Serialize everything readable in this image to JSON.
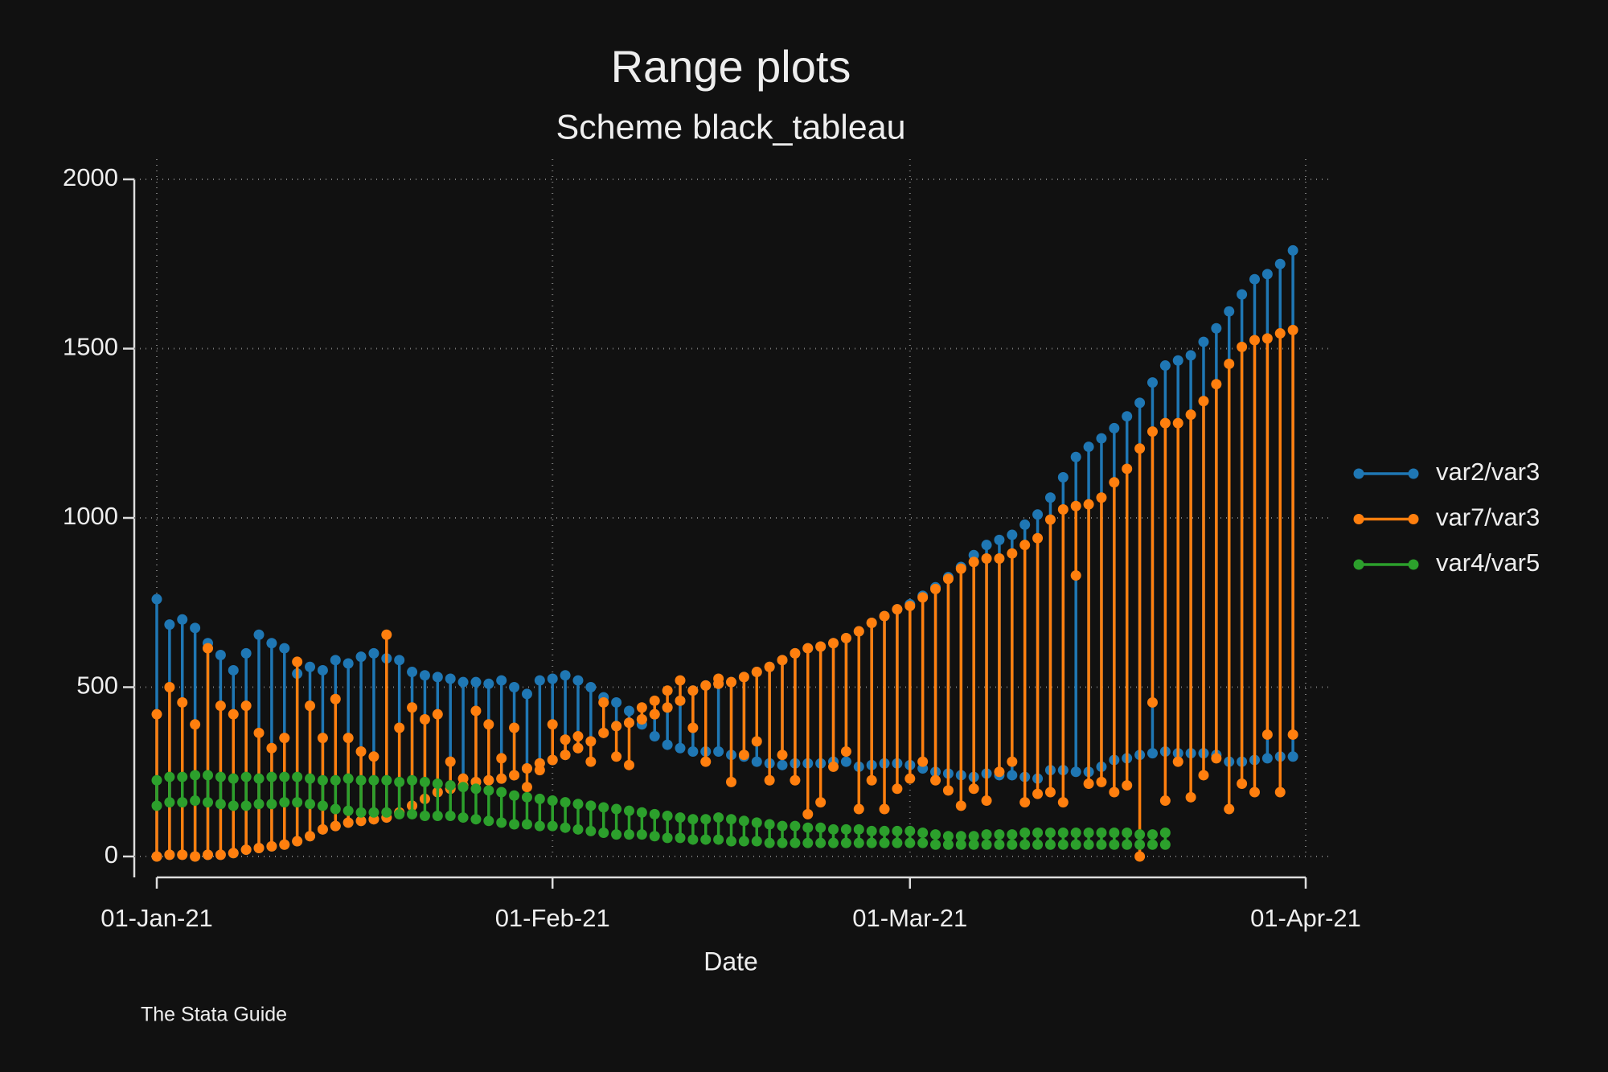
{
  "chart_data": {
    "type": "rrange",
    "title": "Range plots",
    "subtitle": "Scheme black_tableau",
    "x_label": "Date",
    "note": "The Stata Guide",
    "x": [
      "2021-01-01",
      "2021-01-02",
      "2021-01-03",
      "2021-01-04",
      "2021-01-05",
      "2021-01-06",
      "2021-01-07",
      "2021-01-08",
      "2021-01-09",
      "2021-01-10",
      "2021-01-11",
      "2021-01-12",
      "2021-01-13",
      "2021-01-14",
      "2021-01-15",
      "2021-01-16",
      "2021-01-17",
      "2021-01-18",
      "2021-01-19",
      "2021-01-20",
      "2021-01-21",
      "2021-01-22",
      "2021-01-23",
      "2021-01-24",
      "2021-01-25",
      "2021-01-26",
      "2021-01-27",
      "2021-01-28",
      "2021-01-29",
      "2021-01-30",
      "2021-01-31",
      "2021-02-01",
      "2021-02-02",
      "2021-02-03",
      "2021-02-04",
      "2021-02-05",
      "2021-02-06",
      "2021-02-07",
      "2021-02-08",
      "2021-02-09",
      "2021-02-10",
      "2021-02-11",
      "2021-02-12",
      "2021-02-13",
      "2021-02-14",
      "2021-02-15",
      "2021-02-16",
      "2021-02-17",
      "2021-02-18",
      "2021-02-19",
      "2021-02-20",
      "2021-02-21",
      "2021-02-22",
      "2021-02-23",
      "2021-02-24",
      "2021-02-25",
      "2021-02-26",
      "2021-02-27",
      "2021-02-28",
      "2021-03-01",
      "2021-03-02",
      "2021-03-03",
      "2021-03-04",
      "2021-03-05",
      "2021-03-06",
      "2021-03-07",
      "2021-03-08",
      "2021-03-09",
      "2021-03-10",
      "2021-03-11",
      "2021-03-12",
      "2021-03-13",
      "2021-03-14",
      "2021-03-15",
      "2021-03-16",
      "2021-03-17",
      "2021-03-18",
      "2021-03-19",
      "2021-03-20",
      "2021-03-21",
      "2021-03-22",
      "2021-03-23",
      "2021-03-24",
      "2021-03-25",
      "2021-03-26",
      "2021-03-27",
      "2021-03-28",
      "2021-03-29",
      "2021-03-30",
      "2021-03-31"
    ],
    "series": [
      {
        "name": "var2/var3",
        "color": "#1f77b4",
        "y1": [
          760,
          685,
          700,
          675,
          630,
          595,
          550,
          600,
          655,
          630,
          615,
          540,
          560,
          550,
          580,
          570,
          590,
          600,
          585,
          580,
          545,
          535,
          530,
          525,
          515,
          515,
          510,
          520,
          500,
          480,
          520,
          525,
          535,
          520,
          500,
          470,
          455,
          430,
          390,
          355,
          330,
          320,
          310,
          310,
          310,
          300,
          295,
          280,
          275,
          270,
          275,
          275,
          275,
          280,
          280,
          265,
          270,
          275,
          275,
          270,
          260,
          250,
          245,
          240,
          235,
          245,
          240,
          240,
          235,
          230,
          255,
          255,
          250,
          250,
          265,
          285,
          290,
          300,
          305,
          310,
          305,
          305,
          305,
          300,
          280,
          280,
          285,
          290,
          295,
          295
        ],
        "y2": [
          0,
          5,
          5,
          0,
          5,
          5,
          10,
          20,
          25,
          30,
          35,
          45,
          60,
          80,
          90,
          100,
          105,
          110,
          115,
          130,
          150,
          170,
          190,
          200,
          210,
          220,
          225,
          230,
          240,
          260,
          275,
          285,
          300,
          320,
          340,
          365,
          385,
          395,
          405,
          420,
          440,
          460,
          490,
          505,
          510,
          515,
          530,
          545,
          560,
          580,
          600,
          615,
          620,
          630,
          645,
          665,
          690,
          710,
          730,
          745,
          770,
          795,
          825,
          855,
          890,
          920,
          935,
          950,
          980,
          1010,
          1060,
          1120,
          1180,
          1210,
          1235,
          1265,
          1300,
          1340,
          1400,
          1450,
          1465,
          1480,
          1520,
          1560,
          1610,
          1660,
          1705,
          1720,
          1750,
          1790
        ]
      },
      {
        "name": "var7/var3",
        "color": "#ff7f0e",
        "y1": [
          420,
          500,
          455,
          390,
          615,
          445,
          420,
          445,
          365,
          320,
          350,
          575,
          445,
          350,
          465,
          350,
          310,
          295,
          655,
          380,
          440,
          405,
          420,
          280,
          230,
          430,
          390,
          290,
          380,
          205,
          255,
          390,
          345,
          355,
          280,
          455,
          295,
          270,
          440,
          460,
          490,
          520,
          380,
          280,
          525,
          220,
          300,
          340,
          225,
          300,
          225,
          125,
          160,
          265,
          310,
          140,
          225,
          140,
          200,
          230,
          280,
          225,
          195,
          150,
          200,
          165,
          250,
          280,
          160,
          185,
          190,
          160,
          830,
          215,
          220,
          190,
          210,
          0,
          455,
          165,
          280,
          175,
          240,
          290,
          140,
          215,
          190,
          360,
          190,
          360
        ],
        "y2": [
          0,
          5,
          5,
          0,
          5,
          5,
          10,
          20,
          25,
          30,
          35,
          45,
          60,
          80,
          90,
          100,
          105,
          110,
          115,
          130,
          150,
          170,
          190,
          200,
          210,
          220,
          225,
          230,
          240,
          260,
          275,
          285,
          300,
          320,
          340,
          365,
          385,
          395,
          405,
          420,
          440,
          460,
          490,
          505,
          510,
          515,
          530,
          545,
          560,
          580,
          600,
          615,
          620,
          630,
          645,
          665,
          690,
          710,
          730,
          740,
          765,
          790,
          820,
          850,
          870,
          880,
          880,
          895,
          920,
          940,
          995,
          1025,
          1035,
          1040,
          1060,
          1105,
          1145,
          1205,
          1255,
          1280,
          1280,
          1305,
          1345,
          1395,
          1455,
          1505,
          1525,
          1530,
          1545,
          1555
        ]
      },
      {
        "name": "var4/var5",
        "color": "#2ca02c",
        "y1": [
          225,
          235,
          235,
          240,
          240,
          235,
          230,
          235,
          230,
          235,
          235,
          235,
          230,
          225,
          225,
          230,
          225,
          225,
          225,
          220,
          225,
          220,
          215,
          210,
          205,
          200,
          195,
          190,
          180,
          175,
          170,
          165,
          160,
          155,
          150,
          145,
          140,
          135,
          130,
          125,
          120,
          115,
          110,
          110,
          115,
          110,
          105,
          100,
          95,
          90,
          90,
          85,
          85,
          80,
          80,
          80,
          75,
          75,
          75,
          75,
          70,
          65,
          60,
          60,
          60,
          65,
          65,
          65,
          70,
          70,
          70,
          70,
          70,
          70,
          70,
          70,
          70,
          65,
          65,
          70,
          null,
          null,
          null,
          null,
          null,
          null,
          null,
          null,
          null,
          null
        ],
        "y2": [
          150,
          160,
          160,
          165,
          160,
          155,
          150,
          150,
          155,
          155,
          160,
          160,
          155,
          150,
          140,
          135,
          130,
          130,
          130,
          125,
          125,
          120,
          120,
          120,
          115,
          110,
          105,
          100,
          95,
          95,
          90,
          90,
          85,
          80,
          75,
          70,
          65,
          65,
          65,
          60,
          55,
          55,
          50,
          50,
          50,
          45,
          45,
          45,
          40,
          40,
          40,
          40,
          40,
          40,
          40,
          40,
          40,
          40,
          40,
          40,
          40,
          35,
          35,
          35,
          35,
          35,
          35,
          35,
          35,
          35,
          35,
          35,
          35,
          35,
          35,
          35,
          35,
          35,
          35,
          35,
          null,
          null,
          null,
          null,
          null,
          null,
          null,
          null,
          null,
          null
        ]
      }
    ],
    "xlim": [
      "2021-01-01",
      "2021-04-01"
    ],
    "xticks": [
      {
        "value": "2021-01-01",
        "label": "01-Jan-21"
      },
      {
        "value": "2021-02-01",
        "label": "01-Feb-21"
      },
      {
        "value": "2021-03-01",
        "label": "01-Mar-21"
      },
      {
        "value": "2021-04-01",
        "label": "01-Apr-21"
      }
    ],
    "ylim": [
      0,
      2000
    ],
    "yticks": [
      0,
      500,
      1000,
      1500,
      2000
    ],
    "grid": true,
    "legend": "right"
  }
}
